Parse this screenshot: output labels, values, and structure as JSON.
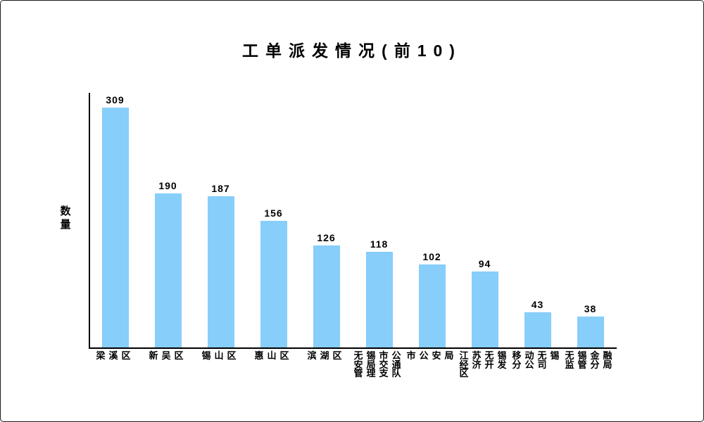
{
  "page": {
    "background": "#ffffff",
    "border_color": "#1b1b1b"
  },
  "chart_data": {
    "type": "bar",
    "title": "工单派发情况(前10)",
    "xlabel": "",
    "ylabel": "数量",
    "categories": [
      "梁溪区",
      "新吴区",
      "锡山区",
      "惠山区",
      "滨湖区",
      "无锡市公安局交通管理支队",
      "市公安局",
      "江苏无锡经济开发区",
      "移动无锡分公司",
      "无锡金融监管分局"
    ],
    "values": [
      309,
      190,
      187,
      156,
      126,
      118,
      102,
      94,
      43,
      38
    ],
    "value_labels_shown": true,
    "ylim": [
      0,
      320
    ],
    "grid": false,
    "legend": "none",
    "bar_color": "#87CEFA",
    "axis_color": "#000000",
    "text_color": "#000000"
  }
}
